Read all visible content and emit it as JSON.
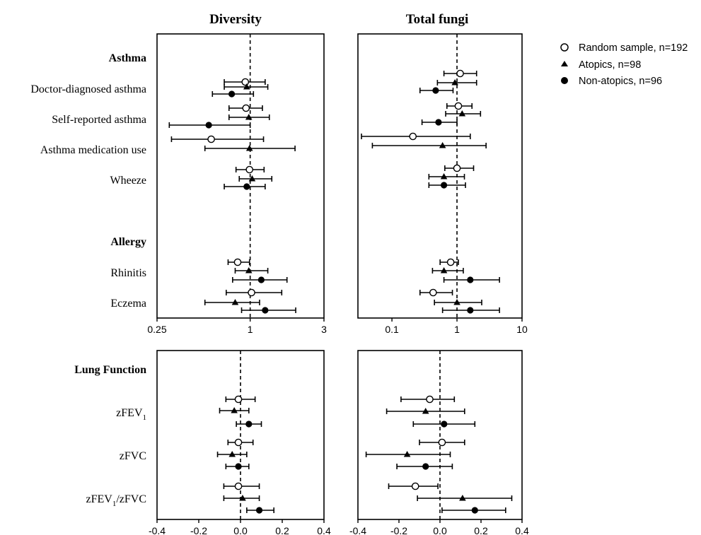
{
  "chart_data": [
    {
      "type": "scatter",
      "panel": "top-left",
      "title": "Diversity",
      "x_scale": "log",
      "xlim": [
        0.25,
        3
      ],
      "x_ticks": [
        "0.25",
        "1",
        "3"
      ],
      "reference_line": 1,
      "sections": [
        "Asthma",
        "Allergy"
      ],
      "rows": [
        {
          "label": "Doctor-diagnosed asthma",
          "section": "Asthma",
          "points": [
            {
              "series": "Random sample, n=192",
              "x": 0.93,
              "lo": 0.68,
              "hi": 1.25
            },
            {
              "series": "Atopics, n=98",
              "x": 0.95,
              "lo": 0.68,
              "hi": 1.3
            },
            {
              "series": "Non-atopics, n=96",
              "x": 0.76,
              "lo": 0.57,
              "hi": 1.05
            }
          ]
        },
        {
          "label": "Self-reported asthma",
          "section": "Asthma",
          "points": [
            {
              "series": "Random sample, n=192",
              "x": 0.94,
              "lo": 0.73,
              "hi": 1.2
            },
            {
              "series": "Atopics, n=98",
              "x": 0.98,
              "lo": 0.73,
              "hi": 1.33
            },
            {
              "series": "Non-atopics, n=96",
              "x": 0.54,
              "lo": 0.3,
              "hi": 1.0
            }
          ]
        },
        {
          "label": "Asthma medication use",
          "section": "Asthma",
          "points": [
            {
              "series": "Random sample, n=192",
              "x": 0.56,
              "lo": 0.31,
              "hi": 1.22
            },
            {
              "series": "Atopics, n=98",
              "x": 0.99,
              "lo": 0.51,
              "hi": 1.95
            }
          ]
        },
        {
          "label": "Wheeze",
          "section": "Asthma",
          "points": [
            {
              "series": "Random sample, n=192",
              "x": 0.99,
              "lo": 0.81,
              "hi": 1.23
            },
            {
              "series": "Atopics, n=98",
              "x": 1.03,
              "lo": 0.85,
              "hi": 1.38
            },
            {
              "series": "Non-atopics, n=96",
              "x": 0.95,
              "lo": 0.68,
              "hi": 1.25
            }
          ]
        },
        {
          "label": "Rhinitis",
          "section": "Allergy",
          "points": [
            {
              "series": "Random sample, n=192",
              "x": 0.83,
              "lo": 0.72,
              "hi": 0.99
            },
            {
              "series": "Atopics, n=98",
              "x": 0.98,
              "lo": 0.8,
              "hi": 1.3
            },
            {
              "series": "Non-atopics, n=96",
              "x": 1.18,
              "lo": 0.77,
              "hi": 1.73
            }
          ]
        },
        {
          "label": "Eczema",
          "section": "Allergy",
          "points": [
            {
              "series": "Random sample, n=192",
              "x": 1.02,
              "lo": 0.7,
              "hi": 1.6
            },
            {
              "series": "Atopics, n=98",
              "x": 0.8,
              "lo": 0.51,
              "hi": 1.15
            },
            {
              "series": "Non-atopics, n=96",
              "x": 1.25,
              "lo": 0.88,
              "hi": 1.97
            }
          ]
        }
      ]
    },
    {
      "type": "scatter",
      "panel": "top-right",
      "title": "Total fungi",
      "x_scale": "log",
      "xlim": [
        0.03,
        10
      ],
      "x_ticks": [
        "0.1",
        "1",
        "10"
      ],
      "reference_line": 1,
      "rows": [
        {
          "label": "Doctor-diagnosed asthma",
          "points": [
            {
              "series": "Random sample, n=192",
              "x": 1.12,
              "lo": 0.63,
              "hi": 2.0
            },
            {
              "series": "Atopics, n=98",
              "x": 0.93,
              "lo": 0.5,
              "hi": 2.0
            },
            {
              "series": "Non-atopics, n=96",
              "x": 0.47,
              "lo": 0.27,
              "hi": 0.87
            }
          ]
        },
        {
          "label": "Self-reported asthma",
          "points": [
            {
              "series": "Random sample, n=192",
              "x": 1.05,
              "lo": 0.7,
              "hi": 1.7
            },
            {
              "series": "Atopics, n=98",
              "x": 1.2,
              "lo": 0.67,
              "hi": 2.3
            },
            {
              "series": "Non-atopics, n=96",
              "x": 0.52,
              "lo": 0.29,
              "hi": 1.0
            }
          ]
        },
        {
          "label": "Asthma medication use",
          "points": [
            {
              "series": "Random sample, n=192",
              "x": 0.21,
              "lo": 0.034,
              "hi": 1.6
            },
            {
              "series": "Atopics, n=98",
              "x": 0.6,
              "lo": 0.05,
              "hi": 2.8
            }
          ]
        },
        {
          "label": "Wheeze",
          "points": [
            {
              "series": "Random sample, n=192",
              "x": 1.0,
              "lo": 0.65,
              "hi": 1.8
            },
            {
              "series": "Atopics, n=98",
              "x": 0.63,
              "lo": 0.37,
              "hi": 1.3
            },
            {
              "series": "Non-atopics, n=96",
              "x": 0.63,
              "lo": 0.37,
              "hi": 1.35
            }
          ]
        },
        {
          "label": "Rhinitis",
          "points": [
            {
              "series": "Random sample, n=192",
              "x": 0.8,
              "lo": 0.55,
              "hi": 1.05
            },
            {
              "series": "Atopics, n=98",
              "x": 0.63,
              "lo": 0.42,
              "hi": 1.25
            },
            {
              "series": "Non-atopics, n=96",
              "x": 1.6,
              "lo": 0.63,
              "hi": 4.5
            }
          ]
        },
        {
          "label": "Eczema",
          "points": [
            {
              "series": "Random sample, n=192",
              "x": 0.43,
              "lo": 0.27,
              "hi": 0.85
            },
            {
              "series": "Atopics, n=98",
              "x": 1.0,
              "lo": 0.45,
              "hi": 2.4
            },
            {
              "series": "Non-atopics, n=96",
              "x": 1.6,
              "lo": 0.6,
              "hi": 4.5
            }
          ]
        }
      ]
    },
    {
      "type": "scatter",
      "panel": "bottom-left",
      "x_scale": "linear",
      "xlim": [
        -0.4,
        0.4
      ],
      "x_ticks": [
        "-0.4",
        "-0.2",
        "0.0",
        "0.2",
        "0.4"
      ],
      "reference_line": 0,
      "sections": [
        "Lung Function"
      ],
      "rows": [
        {
          "label": "zFEV1",
          "points": [
            {
              "series": "Random sample, n=192",
              "x": -0.01,
              "lo": -0.07,
              "hi": 0.07
            },
            {
              "series": "Atopics, n=98",
              "x": -0.03,
              "lo": -0.1,
              "hi": 0.04
            },
            {
              "series": "Non-atopics, n=96",
              "x": 0.04,
              "lo": -0.02,
              "hi": 0.1
            }
          ]
        },
        {
          "label": "zFVC",
          "points": [
            {
              "series": "Random sample, n=192",
              "x": -0.01,
              "lo": -0.06,
              "hi": 0.06
            },
            {
              "series": "Atopics, n=98",
              "x": -0.04,
              "lo": -0.11,
              "hi": 0.03
            },
            {
              "series": "Non-atopics, n=96",
              "x": -0.01,
              "lo": -0.07,
              "hi": 0.04
            }
          ]
        },
        {
          "label": "zFEV1/zFVC",
          "points": [
            {
              "series": "Random sample, n=192",
              "x": -0.01,
              "lo": -0.08,
              "hi": 0.09
            },
            {
              "series": "Atopics, n=98",
              "x": 0.01,
              "lo": -0.08,
              "hi": 0.09
            },
            {
              "series": "Non-atopics, n=96",
              "x": 0.09,
              "lo": 0.03,
              "hi": 0.16
            }
          ]
        }
      ]
    },
    {
      "type": "scatter",
      "panel": "bottom-right",
      "x_scale": "linear",
      "xlim": [
        -0.4,
        0.4
      ],
      "x_ticks": [
        "-0.4",
        "-0.2",
        "0.0",
        "0.2",
        "0.4"
      ],
      "reference_line": 0,
      "rows": [
        {
          "label": "zFEV1",
          "points": [
            {
              "series": "Random sample, n=192",
              "x": -0.05,
              "lo": -0.19,
              "hi": 0.07
            },
            {
              "series": "Atopics, n=98",
              "x": -0.07,
              "lo": -0.26,
              "hi": 0.12
            },
            {
              "series": "Non-atopics, n=96",
              "x": 0.02,
              "lo": -0.13,
              "hi": 0.17
            }
          ]
        },
        {
          "label": "zFVC",
          "points": [
            {
              "series": "Random sample, n=192",
              "x": 0.01,
              "lo": -0.1,
              "hi": 0.12
            },
            {
              "series": "Atopics, n=98",
              "x": -0.16,
              "lo": -0.36,
              "hi": 0.05
            },
            {
              "series": "Non-atopics, n=96",
              "x": -0.07,
              "lo": -0.21,
              "hi": 0.06
            }
          ]
        },
        {
          "label": "zFEV1/zFVC",
          "points": [
            {
              "series": "Random sample, n=192",
              "x": -0.12,
              "lo": -0.25,
              "hi": -0.01
            },
            {
              "series": "Atopics, n=98",
              "x": 0.11,
              "lo": -0.11,
              "hi": 0.35
            },
            {
              "series": "Non-atopics, n=96",
              "x": 0.17,
              "lo": 0.01,
              "hi": 0.32
            }
          ]
        }
      ]
    }
  ],
  "legend": {
    "placement": "top-right",
    "entries": [
      {
        "label": "Random sample, n=192",
        "marker": "open-circle"
      },
      {
        "label": "Atopics, n=98",
        "marker": "filled-triangle"
      },
      {
        "label": "Non-atopics, n=96",
        "marker": "filled-circle"
      }
    ]
  },
  "row_labels_top": {
    "section_asthma": "Asthma",
    "doctor": "Doctor-diagnosed asthma",
    "self": "Self-reported asthma",
    "med": "Asthma medication use",
    "wheeze": "Wheeze",
    "section_allergy": "Allergy",
    "rhinitis": "Rhinitis",
    "eczema": "Eczema"
  },
  "row_labels_bottom": {
    "section_lung": "Lung Function",
    "zfev1_main": "zFEV",
    "zfev1_sub": "1",
    "zfvc": "zFVC",
    "ratio_a": "zFEV",
    "ratio_sub": "1",
    "ratio_b": "/zFVC"
  }
}
